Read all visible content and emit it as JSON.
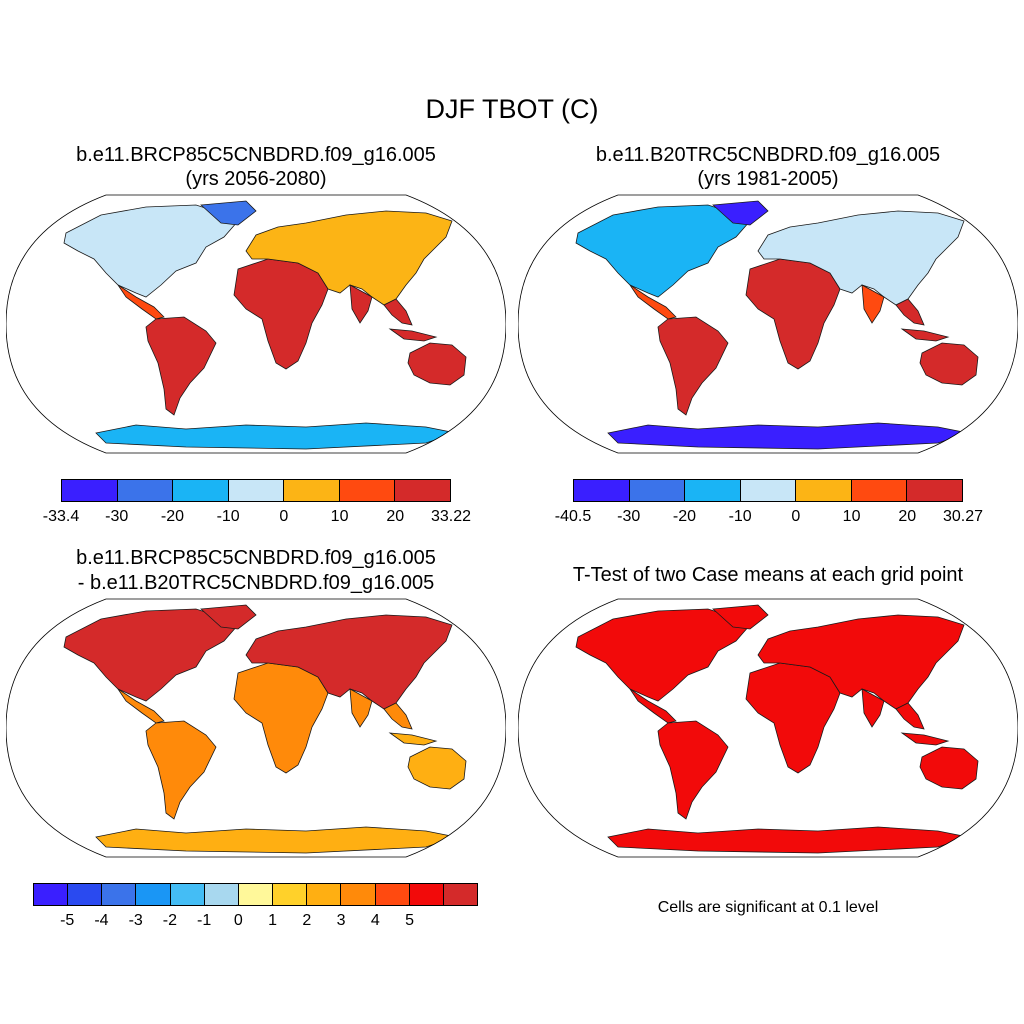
{
  "figure": {
    "main_title": "DJF TBOT (C)"
  },
  "panels": [
    {
      "title_line1": "b.e11.BRCP85C5CNBDRD.f09_g16.005",
      "title_line2": "(yrs 2056-2080)",
      "colorbar": {
        "colors": [
          "#3a1fff",
          "#3b73ea",
          "#1ab4f5",
          "#c8e6f7",
          "#fcb415",
          "#ff4a10",
          "#d42a2a"
        ],
        "labels": [
          "-33.4",
          "-30",
          "-20",
          "-10",
          "0",
          "10",
          "20",
          "33.22"
        ]
      }
    },
    {
      "title_line1": "b.e11.B20TRC5CNBDRD.f09_g16.005",
      "title_line2": "(yrs 1981-2005)",
      "colorbar": {
        "colors": [
          "#3a1fff",
          "#3b73ea",
          "#1ab4f5",
          "#c8e6f7",
          "#fcb415",
          "#ff4a10",
          "#d42a2a"
        ],
        "labels": [
          "-40.5",
          "-30",
          "-20",
          "-10",
          "0",
          "10",
          "20",
          "30.27"
        ]
      }
    },
    {
      "title_line1": "b.e11.BRCP85C5CNBDRD.f09_g16.005",
      "title_line2": "- b.e11.B20TRC5CNBDRD.f09_g16.005",
      "colorbar": {
        "colors": [
          "#3a1fff",
          "#2a4af0",
          "#3b73ea",
          "#1a96f5",
          "#44bdf5",
          "#a8d8ef",
          "#fff89a",
          "#ffd12a",
          "#ffaf12",
          "#ff8a0a",
          "#ff4a10",
          "#f20a0a",
          "#d42a2a"
        ],
        "labels": [
          "-5",
          "-4",
          "-3",
          "-2",
          "-1",
          "0",
          "1",
          "2",
          "3",
          "4",
          "5"
        ]
      }
    },
    {
      "title_line1": "T-Test of two Case means at each grid point",
      "note": "Cells are significant at 0.1 level"
    }
  ]
}
